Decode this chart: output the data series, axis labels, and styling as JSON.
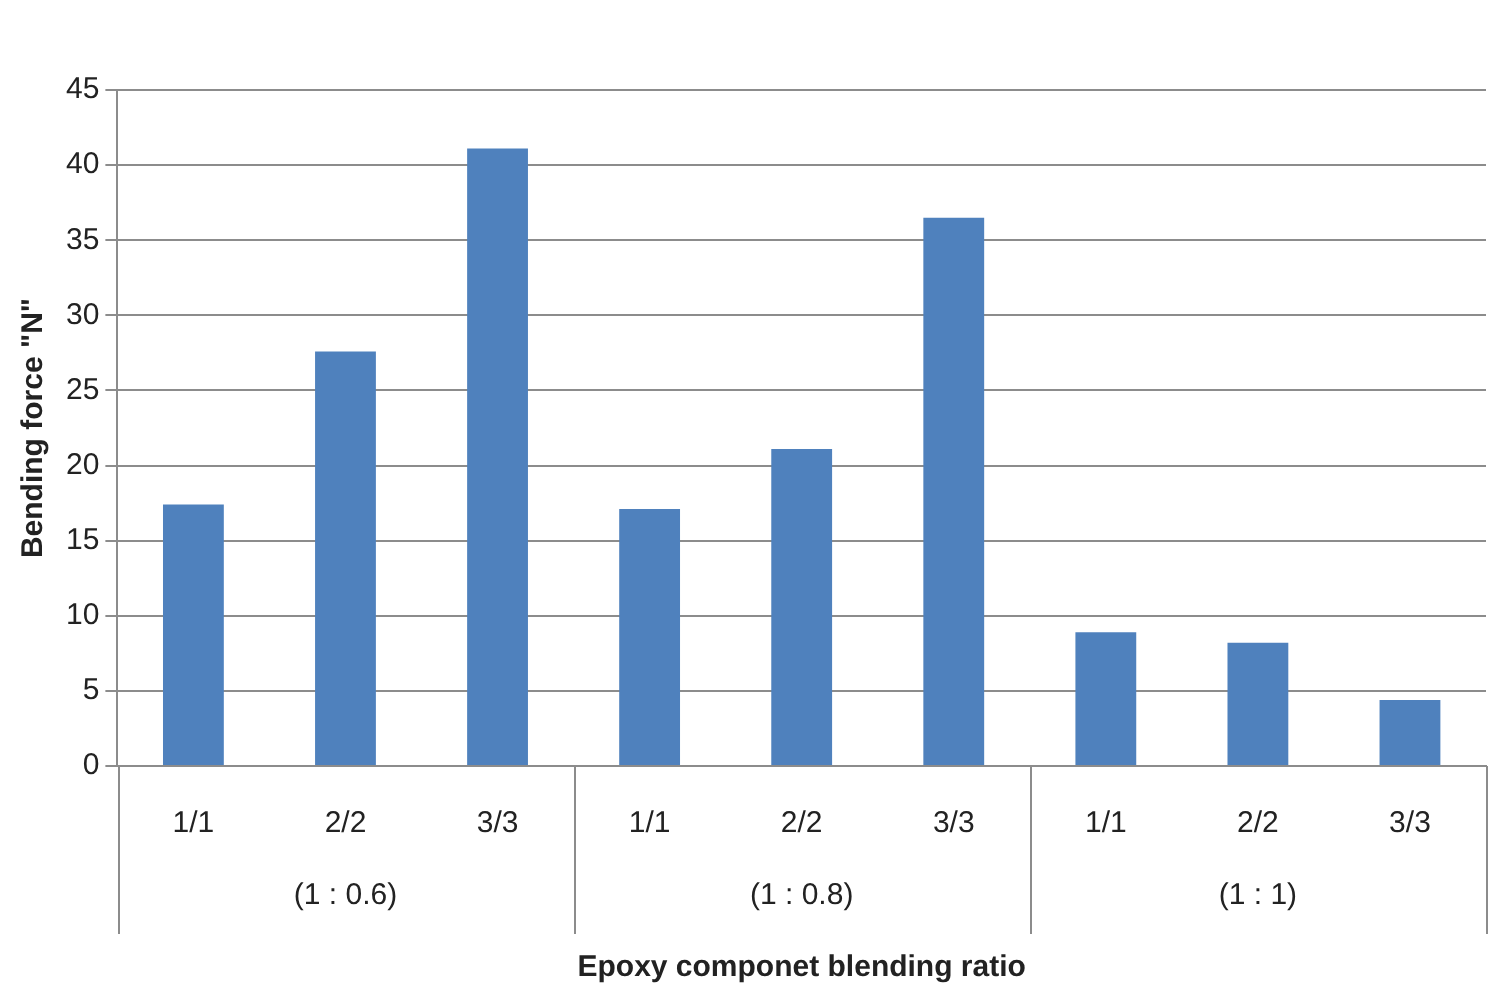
{
  "chart_data": {
    "type": "bar",
    "xlabel": "Epoxy componet blending ratio",
    "ylabel": "Bending force \"N\"",
    "categories": [
      "1/1",
      "2/2",
      "3/3",
      "1/1",
      "2/2",
      "3/3",
      "1/1",
      "2/2",
      "3/3"
    ],
    "values": [
      17.4,
      27.6,
      41.1,
      17.1,
      21.1,
      36.5,
      8.9,
      8.2,
      4.4
    ],
    "color": "#4f81bd",
    "ylim": [
      0,
      45
    ],
    "yticks": [
      0,
      5,
      10,
      15,
      20,
      25,
      30,
      35,
      40,
      45
    ],
    "grid": "y",
    "legend": false,
    "annotations": [
      "(1 : 0.6)",
      "(1 : 0.8)",
      "(1 : 1)"
    ]
  }
}
